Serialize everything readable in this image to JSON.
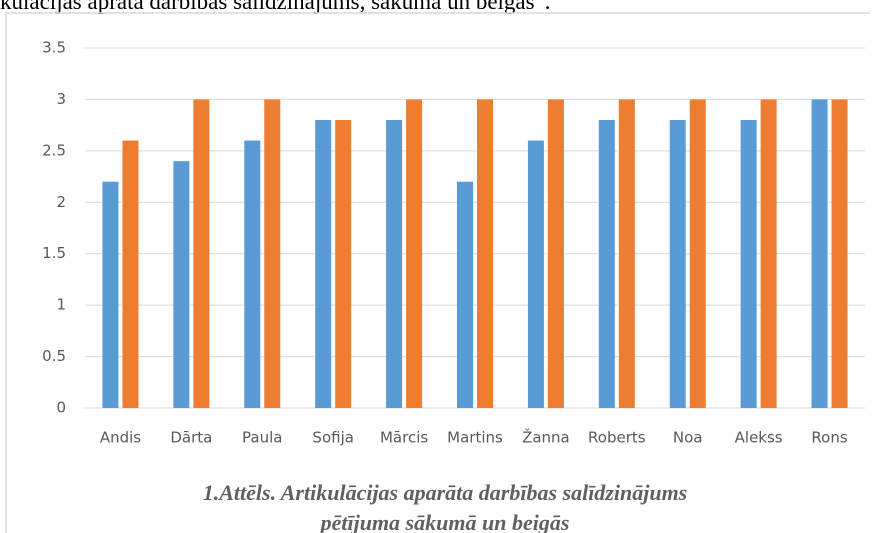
{
  "heading_fragment": "kulācijas aprāta darbības salīdzinājums, sākuma un beigās”.",
  "chart_data": {
    "type": "bar",
    "categories": [
      "Andis",
      "Dārta",
      "Paula",
      "Sofija",
      "Mārcis",
      "Martins",
      "Žanna",
      "Roberts",
      "Noa",
      "Alekss",
      "Rons"
    ],
    "series": [
      {
        "color": "#5b9bd5",
        "values": [
          2.2,
          2.4,
          2.6,
          2.8,
          2.8,
          2.2,
          2.6,
          2.8,
          2.8,
          2.8,
          3
        ]
      },
      {
        "color": "#ed7d31",
        "values": [
          2.6,
          3,
          3,
          2.8,
          3,
          3,
          3,
          3,
          3,
          3,
          3
        ]
      }
    ],
    "ylim": [
      0,
      3.5
    ],
    "yticks": [
      0,
      0.5,
      1,
      1.5,
      2,
      2.5,
      3,
      3.5
    ],
    "grid": true,
    "caption": [
      "1.Attēls. Artikulācijas aparāta darbības salīdzinājums",
      "pētījuma sākumā un beigās"
    ]
  }
}
